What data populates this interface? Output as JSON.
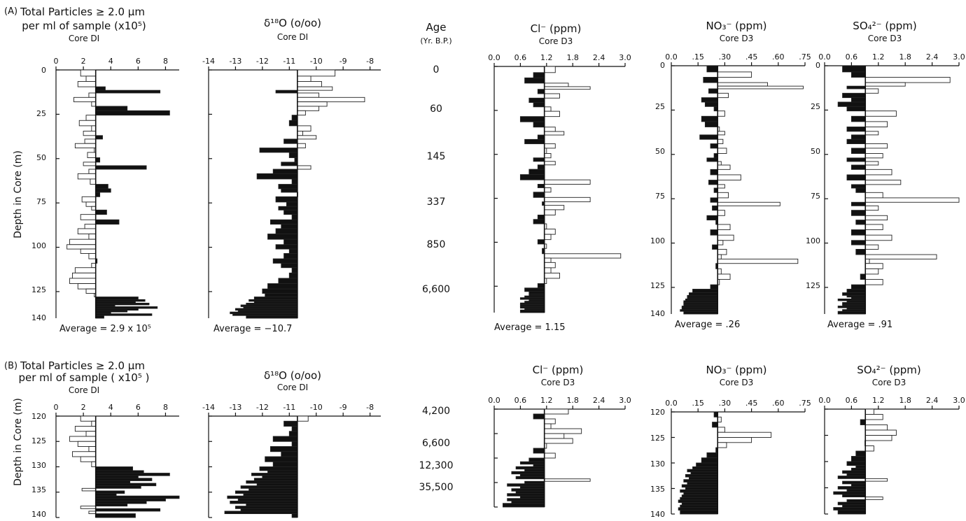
{
  "panels": [
    {
      "id": "A",
      "label": "(A)"
    },
    {
      "id": "B",
      "label": "(B)"
    }
  ],
  "y_axis_label": "Depth in Core (m)",
  "age_header": {
    "title": "Age",
    "sub": "(Yr. B.P.)"
  },
  "age_labels_A": [
    "0",
    "60",
    "145",
    "337",
    "850",
    "6,600"
  ],
  "age_labels_B": [
    "4,200",
    "6,600",
    "12,300",
    "35,500"
  ],
  "depth_ticks_A": [
    "0",
    "25",
    "50",
    "75",
    "100",
    "125",
    "140"
  ],
  "depth_ticks_B": [
    "120",
    "125",
    "130",
    "135",
    "140"
  ],
  "series_meta": [
    {
      "key": "particles",
      "title": "Total Particles ≥ 2.0 µm",
      "title2A": "per ml of sample (x10⁵)",
      "title2B": "per ml of sample ( x10⁵ )",
      "core": "Core DI",
      "avg_label": "Average = 2.9 x 10⁵",
      "ticks": [
        "0",
        "2",
        "4",
        "6",
        "8"
      ]
    },
    {
      "key": "d18o",
      "title": "δ¹⁸O (o/oo)",
      "core": "Core DI",
      "avg_label": "Average = −10.7",
      "ticks": [
        "-14",
        "-13",
        "-12",
        "-11",
        "-10",
        "-9",
        "-8"
      ]
    },
    {
      "key": "cl",
      "title": "Cl⁻ (ppm)",
      "core": "Core D3",
      "avg_label": "Average = 1.15",
      "ticks": [
        "0.0",
        "0.6",
        "1.2",
        "1.8",
        "2.4",
        "3.0"
      ]
    },
    {
      "key": "no3",
      "title": "NO₃⁻ (ppm)",
      "core": "Core D3",
      "avg_label": "Average = .26",
      "ticks": [
        "0.0",
        ".15",
        ".30",
        ".45",
        ".60",
        ".75"
      ]
    },
    {
      "key": "so4",
      "title": "SO₄²⁻ (ppm)",
      "core": "Core D3",
      "avg_label": "Average = .91",
      "ticks": [
        "0.0",
        "0.6",
        "1.2",
        "1.8",
        "2.4",
        "3.0"
      ]
    }
  ],
  "chart_data": [
    {
      "type": "bar",
      "panel": "A",
      "title": "Total Particles ≥ 2.0 µm per ml of sample (x10⁵)",
      "core": "Core DI",
      "xlabel": "Total Particles ≥ 2.0 µm per ml of sample (x10⁵)",
      "ylabel": "Depth in Core (m)",
      "xlim": [
        0,
        9
      ],
      "ylim": [
        140,
        0
      ],
      "average": 2.9,
      "depth": [
        2,
        5,
        8,
        11,
        12,
        14,
        17,
        19,
        22,
        24,
        27,
        30,
        33,
        36,
        38,
        40,
        43,
        45,
        48,
        51,
        53,
        55,
        57,
        60,
        63,
        66,
        68,
        70,
        73,
        76,
        78,
        80,
        83,
        86,
        88,
        91,
        94,
        97,
        100,
        102,
        105,
        108,
        110,
        113,
        116,
        119,
        122,
        125,
        127,
        129,
        130,
        131,
        132,
        133,
        134,
        135,
        136,
        137,
        138,
        139
      ],
      "values": [
        1.8,
        2.2,
        1.6,
        3.6,
        7.6,
        2.4,
        1.3,
        2.6,
        5.2,
        8.3,
        2.2,
        1.7,
        2.6,
        2.0,
        3.4,
        2.1,
        1.4,
        2.8,
        2.3,
        3.2,
        2.0,
        6.6,
        2.4,
        1.6,
        2.5,
        3.8,
        4.0,
        3.2,
        1.9,
        2.2,
        2.6,
        3.7,
        1.8,
        4.6,
        2.1,
        1.6,
        2.4,
        1.0,
        0.8,
        1.8,
        2.4,
        3.0,
        2.6,
        1.4,
        1.2,
        1.0,
        1.6,
        2.2,
        2.8,
        6.0,
        6.5,
        5.8,
        6.8,
        4.3,
        7.4,
        6.0,
        5.2,
        4.0,
        7.0,
        3.5
      ]
    },
    {
      "type": "bar",
      "panel": "A",
      "title": "δ¹⁸O (o/oo)",
      "core": "Core DI",
      "xlabel": "δ¹⁸O (o/oo)",
      "ylabel": "Depth in Core (m)",
      "xlim": [
        -14,
        -7.6
      ],
      "ylim": [
        140,
        0
      ],
      "average": -10.7,
      "depth": [
        2,
        5,
        8,
        11,
        12,
        14,
        17,
        19,
        22,
        24,
        27,
        30,
        33,
        36,
        38,
        40,
        43,
        45,
        48,
        51,
        53,
        55,
        57,
        60,
        63,
        66,
        68,
        70,
        73,
        76,
        78,
        80,
        83,
        86,
        88,
        91,
        94,
        97,
        100,
        102,
        105,
        108,
        110,
        113,
        116,
        119,
        122,
        125,
        127,
        129,
        130,
        131,
        132,
        133,
        134,
        135,
        136,
        137,
        138,
        139
      ],
      "values": [
        -9.3,
        -10.2,
        -9.8,
        -9.4,
        -11.5,
        -9.9,
        -8.2,
        -9.6,
        -9.9,
        -10.4,
        -10.9,
        -11.0,
        -10.2,
        -10.5,
        -10.0,
        -11.2,
        -10.4,
        -12.1,
        -11.0,
        -10.8,
        -11.3,
        -10.2,
        -11.6,
        -12.2,
        -10.9,
        -11.4,
        -11.3,
        -10.7,
        -11.5,
        -11.1,
        -11.4,
        -11.2,
        -10.9,
        -11.7,
        -11.3,
        -11.5,
        -11.8,
        -11.2,
        -11.5,
        -11.0,
        -11.2,
        -11.6,
        -11.3,
        -10.9,
        -11.0,
        -11.4,
        -11.8,
        -12.0,
        -11.9,
        -12.3,
        -12.5,
        -12.3,
        -12.6,
        -12.8,
        -12.7,
        -13.0,
        -12.9,
        -13.2,
        -13.1,
        -12.6
      ]
    },
    {
      "type": "bar",
      "panel": "A",
      "title": "Cl⁻ (ppm)",
      "core": "Core D3",
      "xlabel": "Cl⁻ (ppm)",
      "ylabel": "Depth in Core (m)",
      "xlim": [
        0,
        3.0
      ],
      "ylim": [
        140,
        0
      ],
      "average": 1.15,
      "depth": [
        2,
        5,
        8,
        11,
        12,
        14,
        17,
        19,
        22,
        24,
        27,
        30,
        33,
        36,
        38,
        40,
        43,
        45,
        48,
        51,
        53,
        55,
        57,
        60,
        63,
        66,
        68,
        70,
        73,
        76,
        78,
        80,
        83,
        86,
        88,
        91,
        94,
        97,
        100,
        102,
        105,
        108,
        110,
        113,
        116,
        119,
        122,
        125,
        127,
        129,
        130,
        131,
        132,
        133,
        134,
        135,
        136,
        137,
        138,
        139
      ],
      "values": [
        1.4,
        0.9,
        0.7,
        1.7,
        2.2,
        1.0,
        1.5,
        0.8,
        0.9,
        1.3,
        1.5,
        0.6,
        0.9,
        1.4,
        1.6,
        1.0,
        0.7,
        1.4,
        1.2,
        1.3,
        0.9,
        1.4,
        1.0,
        0.8,
        0.6,
        2.2,
        1.0,
        1.3,
        0.9,
        2.2,
        1.1,
        1.6,
        1.4,
        1.0,
        0.9,
        1.2,
        1.4,
        1.3,
        1.0,
        1.2,
        1.1,
        2.9,
        1.3,
        1.4,
        1.3,
        1.5,
        1.2,
        1.0,
        0.7,
        0.8,
        0.8,
        0.7,
        0.6,
        0.8,
        0.7,
        0.6,
        0.6,
        0.6,
        0.7,
        0.6
      ]
    },
    {
      "type": "bar",
      "panel": "A",
      "title": "NO₃⁻ (ppm)",
      "core": "Core D3",
      "xlabel": "NO₃⁻ (ppm)",
      "ylabel": "Depth in Core (m)",
      "xlim": [
        0,
        0.75
      ],
      "ylim": [
        140,
        0
      ],
      "average": 0.26,
      "depth": [
        2,
        5,
        8,
        11,
        12,
        14,
        17,
        19,
        22,
        24,
        27,
        30,
        33,
        36,
        38,
        40,
        43,
        45,
        48,
        51,
        53,
        55,
        57,
        60,
        63,
        66,
        68,
        70,
        73,
        76,
        78,
        80,
        83,
        86,
        88,
        91,
        94,
        97,
        100,
        102,
        105,
        108,
        110,
        113,
        116,
        119,
        122,
        125,
        127,
        129,
        130,
        131,
        132,
        133,
        134,
        135,
        136,
        137,
        138,
        139
      ],
      "values": [
        0.2,
        0.45,
        0.18,
        0.54,
        0.74,
        0.21,
        0.32,
        0.17,
        0.19,
        0.24,
        0.3,
        0.17,
        0.19,
        0.27,
        0.3,
        0.16,
        0.29,
        0.22,
        0.31,
        0.24,
        0.2,
        0.28,
        0.33,
        0.22,
        0.39,
        0.21,
        0.3,
        0.24,
        0.32,
        0.22,
        0.61,
        0.23,
        0.3,
        0.2,
        0.25,
        0.33,
        0.22,
        0.35,
        0.29,
        0.23,
        0.31,
        0.28,
        0.71,
        0.25,
        0.28,
        0.33,
        0.27,
        0.22,
        0.12,
        0.1,
        0.09,
        0.09,
        0.08,
        0.07,
        0.07,
        0.07,
        0.06,
        0.06,
        0.05,
        0.07
      ]
    },
    {
      "type": "bar",
      "panel": "A",
      "title": "SO₄²⁻ (ppm)",
      "core": "Core D3",
      "xlabel": "SO₄²⁻ (ppm)",
      "ylabel": "Depth in Core (m)",
      "xlim": [
        0,
        3.0
      ],
      "ylim": [
        140,
        0
      ],
      "average": 0.91,
      "depth": [
        2,
        5,
        8,
        11,
        12,
        14,
        17,
        19,
        22,
        24,
        27,
        30,
        33,
        36,
        38,
        40,
        43,
        45,
        48,
        51,
        53,
        55,
        57,
        60,
        63,
        66,
        68,
        70,
        73,
        76,
        78,
        80,
        83,
        86,
        88,
        91,
        94,
        97,
        100,
        102,
        105,
        108,
        110,
        113,
        116,
        119,
        122,
        125,
        127,
        129,
        130,
        131,
        132,
        133,
        134,
        135,
        136,
        137,
        138,
        139
      ],
      "values": [
        0.4,
        0.6,
        2.8,
        1.8,
        0.5,
        1.2,
        0.4,
        0.6,
        0.3,
        0.5,
        1.6,
        0.6,
        1.4,
        0.5,
        1.2,
        0.6,
        0.5,
        1.4,
        0.6,
        1.3,
        0.5,
        1.2,
        0.6,
        1.5,
        0.5,
        1.7,
        0.6,
        0.7,
        1.3,
        3.0,
        0.6,
        1.2,
        0.6,
        1.4,
        0.7,
        1.3,
        0.6,
        1.5,
        0.6,
        1.2,
        0.7,
        2.5,
        1.0,
        1.3,
        1.2,
        0.8,
        1.3,
        0.6,
        0.5,
        0.4,
        0.5,
        0.6,
        0.3,
        0.5,
        0.4,
        0.4,
        0.3,
        0.5,
        0.4,
        0.3
      ]
    },
    {
      "type": "bar",
      "panel": "B",
      "title": "Total Particles ≥ 2.0 µm per ml of sample ( x10⁵ )",
      "core": "Core DI",
      "xlabel": "Total Particles ≥ 2.0 µm per ml of sample ( x10⁵ )",
      "ylabel": "Depth in Core (m)",
      "xlim": [
        0,
        9
      ],
      "ylim": [
        140,
        120
      ],
      "average": 2.9,
      "depth": [
        120.5,
        121.5,
        122.5,
        123.5,
        124.5,
        125.5,
        126.5,
        127.5,
        128.5,
        129.5,
        130.5,
        131,
        131.5,
        132,
        132.5,
        133,
        133.5,
        134,
        134.5,
        135,
        135.5,
        136,
        136.5,
        137,
        137.5,
        138,
        138.5,
        139,
        139.5
      ],
      "values": [
        1.8,
        2.6,
        1.4,
        2.2,
        1.0,
        1.6,
        2.4,
        1.2,
        1.8,
        2.6,
        5.6,
        6.4,
        8.3,
        6.0,
        7.0,
        5.4,
        7.3,
        6.2,
        1.9,
        5.0,
        4.4,
        9.0,
        8.0,
        6.6,
        5.2,
        1.8,
        7.6,
        2.4,
        5.8
      ]
    },
    {
      "type": "bar",
      "panel": "B",
      "title": "δ¹⁸O (o/oo)",
      "core": "Core DI",
      "xlabel": "δ¹⁸O (o/oo)",
      "ylabel": "Depth in Core (m)",
      "xlim": [
        -14,
        -7.6
      ],
      "ylim": [
        140,
        120
      ],
      "average": -10.7,
      "depth": [
        120.5,
        121.5,
        122.5,
        123.5,
        124.5,
        125.5,
        126.5,
        127.5,
        128.5,
        129.5,
        130.5,
        131,
        131.5,
        132,
        132.5,
        133,
        133.5,
        134,
        134.5,
        135,
        135.5,
        136,
        136.5,
        137,
        137.5,
        138,
        138.5,
        139,
        139.5
      ],
      "values": [
        -10.3,
        -11.2,
        -10.9,
        -11.0,
        -11.6,
        -10.9,
        -11.7,
        -11.3,
        -11.9,
        -11.6,
        -12.1,
        -11.8,
        -12.4,
        -12.0,
        -12.3,
        -12.6,
        -12.2,
        -12.8,
        -12.5,
        -13.0,
        -12.7,
        -13.3,
        -12.9,
        -13.2,
        -12.6,
        -13.0,
        -12.8,
        -13.4,
        -10.9
      ]
    },
    {
      "type": "bar",
      "panel": "B",
      "title": "Cl⁻ (ppm)",
      "core": "Core D3",
      "xlabel": "Cl⁻ (ppm)",
      "ylabel": "Depth in Core (m)",
      "xlim": [
        0,
        3.0
      ],
      "ylim": [
        140,
        120
      ],
      "average": 1.15,
      "depth": [
        120.5,
        121.5,
        122.5,
        123.5,
        124.5,
        125.5,
        126.5,
        127.5,
        128.5,
        129.5,
        130.5,
        131,
        131.5,
        132,
        132.5,
        133,
        133.5,
        134,
        134.5,
        135,
        135.5,
        136,
        136.5,
        137,
        137.5,
        138,
        138.5,
        139,
        139.5
      ],
      "values": [
        1.7,
        0.9,
        1.4,
        1.3,
        2.0,
        1.6,
        1.8,
        1.2,
        0.9,
        1.4,
        0.8,
        0.6,
        0.9,
        0.5,
        0.7,
        0.4,
        0.6,
        0.5,
        2.2,
        0.7,
        0.3,
        0.6,
        0.4,
        0.5,
        0.3,
        0.6,
        0.3,
        0.4,
        0.2
      ]
    },
    {
      "type": "bar",
      "panel": "B",
      "title": "NO₃⁻ (ppm)",
      "core": "Core D3",
      "xlabel": "NO₃⁻ (ppm)",
      "ylabel": "Depth in Core (m)",
      "xlim": [
        0,
        0.75
      ],
      "ylim": [
        140,
        120
      ],
      "average": 0.26,
      "depth": [
        120.5,
        121.5,
        122.5,
        123.5,
        124.5,
        125.5,
        126.5,
        127.5,
        128.5,
        129.5,
        130.5,
        131,
        131.5,
        132,
        132.5,
        133,
        133.5,
        134,
        134.5,
        135,
        135.5,
        136,
        136.5,
        137,
        137.5,
        138,
        138.5,
        139,
        139.5
      ],
      "values": [
        0.24,
        0.28,
        0.23,
        0.3,
        0.56,
        0.45,
        0.31,
        0.25,
        0.2,
        0.17,
        0.14,
        0.12,
        0.09,
        0.11,
        0.08,
        0.1,
        0.07,
        0.09,
        0.06,
        0.08,
        0.05,
        0.07,
        0.06,
        0.05,
        0.04,
        0.06,
        0.05,
        0.04,
        0.05
      ]
    },
    {
      "type": "bar",
      "panel": "B",
      "title": "SO₄²⁻ (ppm)",
      "core": "Core D3",
      "xlabel": "SO₄²⁻ (ppm)",
      "ylabel": "Depth in Core (m)",
      "xlim": [
        0,
        3.0
      ],
      "ylim": [
        140,
        120
      ],
      "average": 0.91,
      "depth": [
        120.5,
        121.5,
        122.5,
        123.5,
        124.5,
        125.5,
        126.5,
        127.5,
        128.5,
        129.5,
        130.5,
        131,
        131.5,
        132,
        132.5,
        133,
        133.5,
        134,
        134.5,
        135,
        135.5,
        136,
        136.5,
        137,
        137.5,
        138,
        138.5,
        139,
        139.5
      ],
      "values": [
        1.1,
        1.3,
        0.8,
        1.4,
        1.6,
        1.5,
        0.9,
        1.1,
        0.7,
        0.6,
        0.5,
        0.7,
        0.6,
        0.4,
        0.5,
        0.3,
        1.4,
        0.4,
        0.6,
        0.3,
        0.5,
        0.2,
        0.4,
        1.3,
        0.5,
        0.3,
        0.4,
        0.2,
        0.3
      ]
    }
  ]
}
